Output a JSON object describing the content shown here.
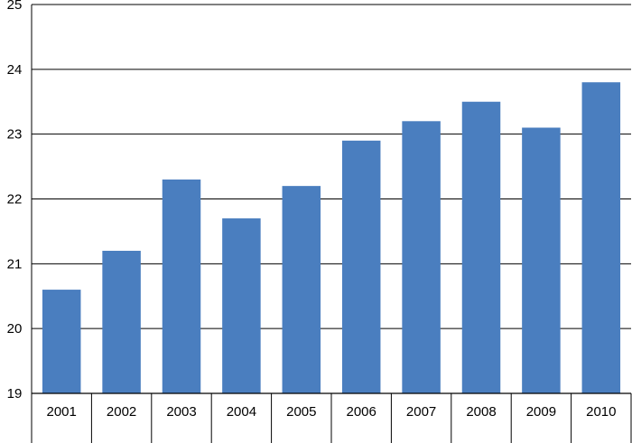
{
  "chart_data": {
    "type": "bar",
    "categories": [
      "2001",
      "2002",
      "2003",
      "2004",
      "2005",
      "2006",
      "2007",
      "2008",
      "2009",
      "2010"
    ],
    "values": [
      20.6,
      21.2,
      22.3,
      21.7,
      22.2,
      22.9,
      23.2,
      23.5,
      23.1,
      23.8
    ],
    "ylim": [
      19,
      25
    ],
    "yticks": [
      "19",
      "20",
      "21",
      "22",
      "23",
      "24",
      "25"
    ],
    "grid": true,
    "bar_color": "#4a7ebf"
  }
}
